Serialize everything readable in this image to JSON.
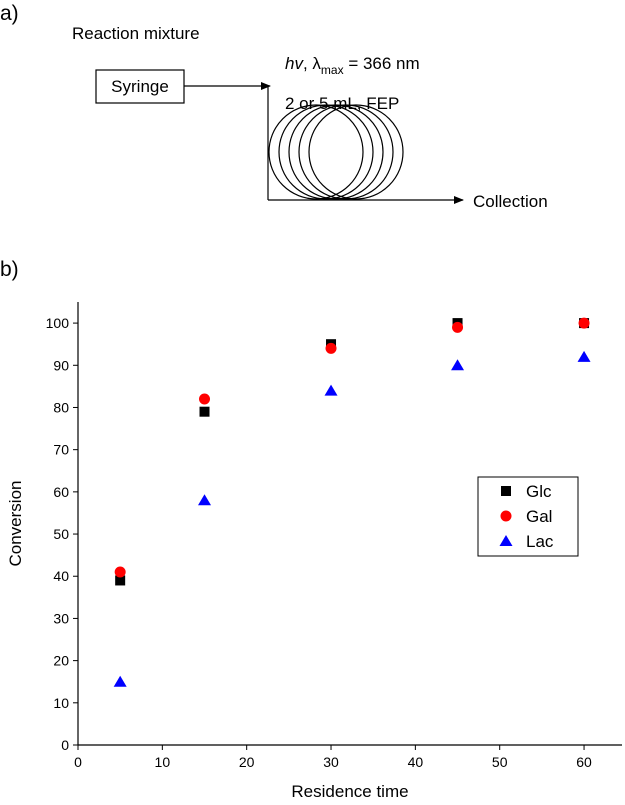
{
  "diagram": {
    "panel_a": "a)",
    "input_label": "Reaction mixture",
    "syringe": "Syringe",
    "light_label": [
      "hv",
      ", λ",
      "max",
      " = 366 nm"
    ],
    "reactor_label": "2 or 5 mL, FEP",
    "output": "Collection"
  },
  "panel_b": "b)",
  "chart_data": {
    "type": "scatter",
    "xlabel": "Residence time",
    "ylabel": "Conversion",
    "x": [
      5,
      15,
      30,
      45,
      60
    ],
    "series": [
      {
        "name": "Glc",
        "color": "#000000",
        "marker": "square",
        "values": [
          39,
          79,
          95,
          100,
          100
        ]
      },
      {
        "name": "Gal",
        "color": "#ff0000",
        "marker": "circle",
        "values": [
          41,
          82,
          94,
          99,
          100
        ]
      },
      {
        "name": "Lac",
        "color": "#0000ff",
        "marker": "triangle",
        "values": [
          15,
          58,
          84,
          90,
          92
        ]
      }
    ],
    "xlim": [
      0,
      64.5
    ],
    "ylim": [
      0,
      105
    ],
    "xticks": [
      0,
      10,
      20,
      30,
      40,
      50,
      60
    ],
    "yticks": [
      0,
      10,
      20,
      30,
      40,
      50,
      60,
      70,
      80,
      90,
      100
    ],
    "legend": "right"
  }
}
